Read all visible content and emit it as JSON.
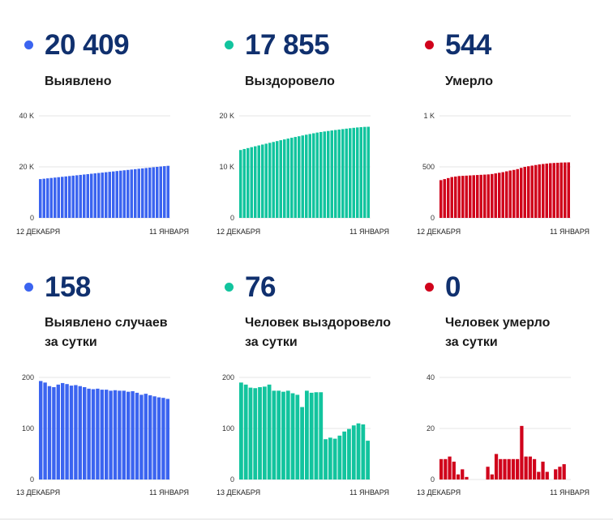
{
  "panels": [
    {
      "value": "20 409",
      "label1": "Выявлено",
      "label2": "",
      "color": "#3b64f0"
    },
    {
      "value": "17 855",
      "label1": "Выздоровело",
      "label2": "",
      "color": "#12c49e"
    },
    {
      "value": "544",
      "label1": "Умерло",
      "label2": "",
      "color": "#d0021b"
    },
    {
      "value": "158",
      "label1": "Выявлено случаев",
      "label2": "за сутки",
      "color": "#3b64f0"
    },
    {
      "value": "76",
      "label1": "Человек выздоровело",
      "label2": "за сутки",
      "color": "#12c49e"
    },
    {
      "value": "0",
      "label1": "Человек умерло",
      "label2": "за сутки",
      "color": "#d0021b"
    }
  ],
  "chart_data": [
    {
      "type": "bar",
      "color": "#3b64f0",
      "ylim": [
        0,
        40000
      ],
      "ticks": [
        {
          "v": 0,
          "t": "0"
        },
        {
          "v": 20000,
          "t": "20 K"
        },
        {
          "v": 40000,
          "t": "40 K"
        }
      ],
      "x_start": "12 ДЕКАБРЯ",
      "x_end": "11 ЯНВАРЯ",
      "values": [
        15200,
        15350,
        15500,
        15650,
        15800,
        15950,
        16100,
        16250,
        16400,
        16550,
        16700,
        16850,
        17000,
        17150,
        17300,
        17450,
        17600,
        17750,
        17900,
        18050,
        18200,
        18350,
        18500,
        18650,
        18800,
        18950,
        19100,
        19250,
        19400,
        19550,
        19700,
        19850,
        20000,
        20150,
        20280,
        20409
      ]
    },
    {
      "type": "bar",
      "color": "#12c49e",
      "ylim": [
        0,
        20000
      ],
      "ticks": [
        {
          "v": 0,
          "t": "0"
        },
        {
          "v": 10000,
          "t": "10 K"
        },
        {
          "v": 20000,
          "t": "20 K"
        }
      ],
      "x_start": "12 ДЕКАБРЯ",
      "x_end": "11 ЯНВАРЯ",
      "values": [
        13300,
        13500,
        13680,
        13860,
        14030,
        14200,
        14370,
        14540,
        14710,
        14880,
        15050,
        15220,
        15380,
        15540,
        15700,
        15860,
        16000,
        16150,
        16300,
        16440,
        16580,
        16720,
        16830,
        16930,
        17030,
        17130,
        17220,
        17310,
        17400,
        17490,
        17570,
        17650,
        17720,
        17780,
        17830,
        17855
      ]
    },
    {
      "type": "bar",
      "color": "#d0021b",
      "ylim": [
        0,
        1000
      ],
      "ticks": [
        {
          "v": 0,
          "t": "0"
        },
        {
          "v": 500,
          "t": "500"
        },
        {
          "v": 1000,
          "t": "1 K"
        }
      ],
      "x_start": "12 ДЕКАБРЯ",
      "x_end": "11 ЯНВАРЯ",
      "values": [
        370,
        380,
        390,
        400,
        405,
        410,
        412,
        414,
        416,
        418,
        420,
        422,
        424,
        426,
        430,
        436,
        442,
        448,
        456,
        464,
        470,
        478,
        490,
        500,
        506,
        512,
        518,
        524,
        528,
        532,
        536,
        538,
        540,
        542,
        543,
        544
      ]
    },
    {
      "type": "bar",
      "color": "#3b64f0",
      "ylim": [
        0,
        200
      ],
      "ticks": [
        {
          "v": 0,
          "t": "0"
        },
        {
          "v": 100,
          "t": "100"
        },
        {
          "v": 200,
          "t": "200"
        }
      ],
      "x_start": "13 ДЕКАБРЯ",
      "x_end": "11 ЯНВАРЯ",
      "values": [
        193,
        190,
        183,
        181,
        186,
        189,
        187,
        184,
        185,
        183,
        181,
        178,
        177,
        178,
        176,
        176,
        174,
        175,
        174,
        174,
        172,
        173,
        170,
        166,
        168,
        165,
        163,
        161,
        160,
        158
      ]
    },
    {
      "type": "bar",
      "color": "#12c49e",
      "ylim": [
        0,
        200
      ],
      "ticks": [
        {
          "v": 0,
          "t": "0"
        },
        {
          "v": 100,
          "t": "100"
        },
        {
          "v": 200,
          "t": "200"
        }
      ],
      "x_start": "13 ДЕКАБРЯ",
      "x_end": "11 ЯНВАРЯ",
      "values": [
        190,
        186,
        180,
        179,
        181,
        182,
        186,
        174,
        174,
        172,
        174,
        169,
        166,
        142,
        174,
        170,
        171,
        171,
        79,
        82,
        80,
        86,
        94,
        99,
        106,
        110,
        108,
        76
      ]
    },
    {
      "type": "bar",
      "color": "#d0021b",
      "ylim": [
        0,
        40
      ],
      "ticks": [
        {
          "v": 0,
          "t": "0"
        },
        {
          "v": 20,
          "t": "20"
        },
        {
          "v": 40,
          "t": "40"
        }
      ],
      "x_start": "13 ДЕКАБРЯ",
      "x_end": "11 ЯНВАРЯ",
      "values": [
        8,
        8,
        9,
        7,
        2,
        4,
        1,
        0,
        0,
        0,
        0,
        5,
        2,
        10,
        8,
        8,
        8,
        8,
        8,
        21,
        9,
        9,
        8,
        3,
        7,
        3,
        0,
        4,
        5,
        6,
        0
      ]
    }
  ]
}
